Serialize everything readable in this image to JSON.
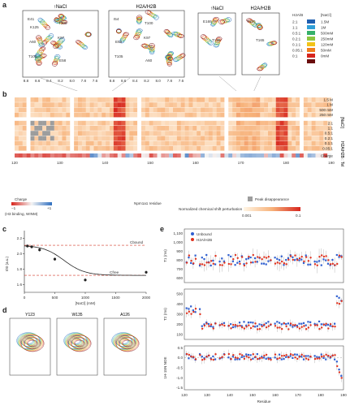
{
  "panel_letters": {
    "a": "a",
    "b": "b",
    "c": "c",
    "d": "d",
    "e": "e"
  },
  "panel_a": {
    "titles": [
      "↑NaCl",
      "H2A/H2B",
      "↑NaCl",
      "H2A/H2B"
    ],
    "peak_labels_1": [
      "E41",
      "K97",
      "T105",
      "T100",
      "A60",
      "E58",
      "K125"
    ],
    "peak_labels_2": [
      "I54",
      "K97",
      "T105",
      "T100",
      "E58",
      "A60"
    ],
    "peak_labels_3": [
      "E169",
      "T170"
    ],
    "peak_labels_4": [
      "T170",
      "T165"
    ],
    "x_ticks_1": [
      "8.8",
      "8.6",
      "8.4",
      "8.2",
      "8.0",
      "7.8",
      "7.6"
    ],
    "x_ticks_2": [
      "8.8",
      "8.6",
      "8.4",
      "8.2",
      "8.0",
      "7.8",
      "7.6"
    ],
    "legend_header": [
      "H2A/B",
      "[NaCl]"
    ],
    "legend_rows": [
      {
        "ratio": "2:1",
        "nacl": "1.5M",
        "color": "#1f5fb0"
      },
      {
        "ratio": "1:1",
        "nacl": "1M",
        "color": "#2f9fd8"
      },
      {
        "ratio": "0.5:1",
        "nacl": "500mM",
        "color": "#35b06a"
      },
      {
        "ratio": "0.2:1",
        "nacl": "250mM",
        "color": "#8cc63f"
      },
      {
        "ratio": "0.1:1",
        "nacl": "120mM",
        "color": "#f2c318"
      },
      {
        "ratio": "0.05:1",
        "nacl": "50mM",
        "color": "#f07f1e"
      },
      {
        "ratio": "0:1",
        "nacl": "0mM",
        "color": "#d7261e"
      },
      {
        "ratio": "",
        "nacl": "",
        "color": "#6a0e0e"
      }
    ]
  },
  "panel_b": {
    "row_labels_top": [
      "1.5 M",
      "1 M",
      "500 mM",
      "250 mM"
    ],
    "row_labels_bottom": [
      "2:1",
      "1:1",
      "0.5:1",
      "0.2:1",
      "0.1:1",
      "0.05:1"
    ],
    "row_label_charge": "Charge",
    "group_labels": [
      "[NaCl]",
      "H2A/H2B : Tel"
    ],
    "x_ticks": [
      "120",
      "130",
      "140",
      "150",
      "160",
      "170",
      "180",
      "190"
    ],
    "charge_legend_title": "Charge",
    "charge_legend_min": "−1",
    "charge_legend_max": "+1",
    "charge_legend_sub": "(H3 binding, WINM)",
    "xlabel": "Npm1a1 residue",
    "missing_label": "Peak disappearance",
    "cbar_label": "Normalized chemical shift perturbation",
    "cbar_min": "0.001",
    "cbar_max": "0.1"
  },
  "panel_c": {
    "ylabel": "I/I0 (a.u.)",
    "xlabel": "[NaCl] (mM)",
    "x_ticks": [
      "0",
      "500",
      "1000",
      "1500",
      "2000"
    ],
    "y_ticks": [
      "1.6",
      "1.8",
      "2.0",
      "2.2"
    ],
    "label_bound": "Cbound",
    "label_free": "Cfree"
  },
  "panel_d": {
    "titles": [
      "Y123",
      "W135",
      "A126"
    ]
  },
  "panel_e": {
    "legend": [
      "Unbound",
      "H2A/H2B"
    ],
    "ylabels": [
      "T1 (ms)",
      "T2 (ms)",
      "1H-15N NOE"
    ],
    "xlabel": "Residue",
    "x_ticks": [
      "120",
      "130",
      "140",
      "150",
      "160",
      "170",
      "180",
      "190"
    ],
    "t1_ticks": [
      "600",
      "700",
      "800",
      "900",
      "1,000",
      "1,100"
    ],
    "t2_ticks": [
      "100",
      "200",
      "300",
      "400",
      "500"
    ],
    "noe_ticks": [
      "-1.5",
      "-1.0",
      "-0.5",
      "0.0",
      "0.5"
    ]
  },
  "colors": {
    "unbound": "#2f5fd0",
    "bound": "#e0321e",
    "dashed_red": "#d23a2a"
  }
}
